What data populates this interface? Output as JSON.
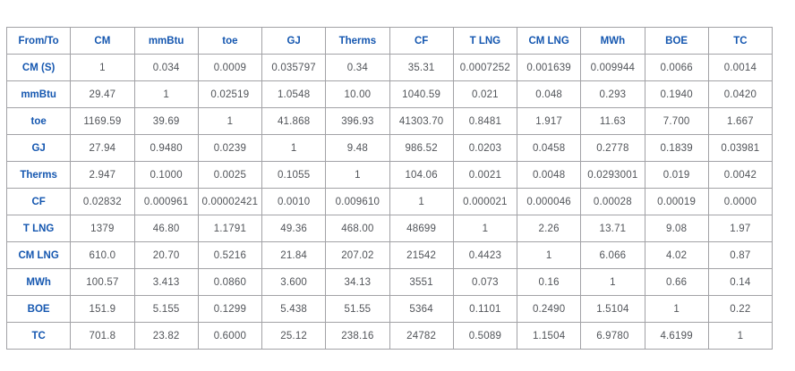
{
  "colors": {
    "header_text": "#1557b0",
    "row_label_text": "#1557b0",
    "cell_text": "#515459",
    "border": "#a2a2a6",
    "background": "#ffffff"
  },
  "chart_data": {
    "type": "table",
    "columns": [
      "From/To",
      "CM",
      "mmBtu",
      "toe",
      "GJ",
      "Therms",
      "CF",
      "T LNG",
      "CM LNG",
      "MWh",
      "BOE",
      "TC"
    ],
    "rows": [
      {
        "label": "CM (S)",
        "values": [
          "1",
          "0.034",
          "0.0009",
          "0.035797",
          "0.34",
          "35.31",
          "0.0007252",
          "0.001639",
          "0.009944",
          "0.0066",
          "0.0014"
        ]
      },
      {
        "label": "mmBtu",
        "values": [
          "29.47",
          "1",
          "0.02519",
          "1.0548",
          "10.00",
          "1040.59",
          "0.021",
          "0.048",
          "0.293",
          "0.1940",
          "0.0420"
        ]
      },
      {
        "label": "toe",
        "values": [
          "1169.59",
          "39.69",
          "1",
          "41.868",
          "396.93",
          "41303.70",
          "0.8481",
          "1.917",
          "11.63",
          "7.700",
          "1.667"
        ]
      },
      {
        "label": "GJ",
        "values": [
          "27.94",
          "0.9480",
          "0.0239",
          "1",
          "9.48",
          "986.52",
          "0.0203",
          "0.0458",
          "0.2778",
          "0.1839",
          "0.03981"
        ]
      },
      {
        "label": "Therms",
        "values": [
          "2.947",
          "0.1000",
          "0.0025",
          "0.1055",
          "1",
          "104.06",
          "0.0021",
          "0.0048",
          "0.0293001",
          "0.019",
          "0.0042"
        ]
      },
      {
        "label": "CF",
        "values": [
          "0.02832",
          "0.000961",
          "0.00002421",
          "0.0010",
          "0.009610",
          "1",
          "0.000021",
          "0.000046",
          "0.00028",
          "0.00019",
          "0.0000"
        ]
      },
      {
        "label": "T LNG",
        "values": [
          "1379",
          "46.80",
          "1.1791",
          "49.36",
          "468.00",
          "48699",
          "1",
          "2.26",
          "13.71",
          "9.08",
          "1.97"
        ]
      },
      {
        "label": "CM LNG",
        "values": [
          "610.0",
          "20.70",
          "0.5216",
          "21.84",
          "207.02",
          "21542",
          "0.4423",
          "1",
          "6.066",
          "4.02",
          "0.87"
        ]
      },
      {
        "label": "MWh",
        "values": [
          "100.57",
          "3.413",
          "0.0860",
          "3.600",
          "34.13",
          "3551",
          "0.073",
          "0.16",
          "1",
          "0.66",
          "0.14"
        ]
      },
      {
        "label": "BOE",
        "values": [
          "151.9",
          "5.155",
          "0.1299",
          "5.438",
          "51.55",
          "5364",
          "0.1101",
          "0.2490",
          "1.5104",
          "1",
          "0.22"
        ]
      },
      {
        "label": "TC",
        "values": [
          "701.8",
          "23.82",
          "0.6000",
          "25.12",
          "238.16",
          "24782",
          "0.5089",
          "1.1504",
          "6.9780",
          "4.6199",
          "1"
        ]
      }
    ]
  }
}
